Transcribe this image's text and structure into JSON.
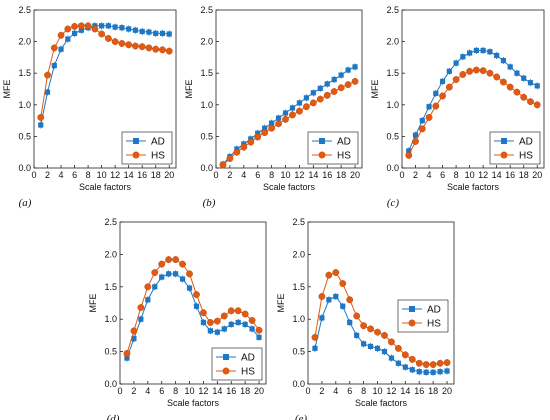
{
  "colors": {
    "AD": "#1f77c4",
    "HS": "#e05a12"
  },
  "chart_data": [
    {
      "type": "line",
      "panel": "(a)",
      "xlabel": "Scale factors",
      "ylabel": "MFE",
      "xlim": [
        0,
        21
      ],
      "ylim": [
        0,
        2.5
      ],
      "xticks": [
        0,
        2,
        4,
        6,
        8,
        10,
        12,
        14,
        16,
        18,
        20
      ],
      "yticks": [
        0,
        0.5,
        1.0,
        1.5,
        2.0,
        2.5
      ],
      "ytick_labels": [
        "0.0",
        "0.5",
        "1.0",
        "1.5",
        "2.0",
        "2.5"
      ],
      "legend": "bottom-right",
      "x": [
        1,
        2,
        3,
        4,
        5,
        6,
        7,
        8,
        9,
        10,
        11,
        12,
        13,
        14,
        15,
        16,
        17,
        18,
        19,
        20
      ],
      "series": [
        {
          "name": "AD",
          "marker": "square",
          "values": [
            0.68,
            1.2,
            1.62,
            1.88,
            2.04,
            2.13,
            2.18,
            2.22,
            2.25,
            2.25,
            2.25,
            2.23,
            2.22,
            2.2,
            2.18,
            2.16,
            2.15,
            2.13,
            2.13,
            2.12
          ]
        },
        {
          "name": "HS",
          "marker": "circle",
          "values": [
            0.8,
            1.47,
            1.9,
            2.1,
            2.2,
            2.24,
            2.25,
            2.25,
            2.2,
            2.12,
            2.05,
            2.0,
            1.97,
            1.95,
            1.93,
            1.92,
            1.9,
            1.88,
            1.87,
            1.85
          ]
        }
      ]
    },
    {
      "type": "line",
      "panel": "(b)",
      "xlabel": "Scale factors",
      "ylabel": "MFE",
      "xlim": [
        0,
        21
      ],
      "ylim": [
        0,
        2.5
      ],
      "xticks": [
        0,
        2,
        4,
        6,
        8,
        10,
        12,
        14,
        16,
        18,
        20
      ],
      "yticks": [
        0,
        0.5,
        1.0,
        1.5,
        2.0,
        2.5
      ],
      "ytick_labels": [
        "0.0",
        "0.5",
        "1.0",
        "1.5",
        "2.0",
        "2.5"
      ],
      "legend": "bottom-right",
      "x": [
        1,
        2,
        3,
        4,
        5,
        6,
        7,
        8,
        9,
        10,
        11,
        12,
        13,
        14,
        15,
        16,
        17,
        18,
        19,
        20
      ],
      "series": [
        {
          "name": "AD",
          "marker": "square",
          "values": [
            0.06,
            0.18,
            0.3,
            0.38,
            0.46,
            0.55,
            0.63,
            0.71,
            0.79,
            0.87,
            0.95,
            1.03,
            1.11,
            1.19,
            1.26,
            1.33,
            1.4,
            1.47,
            1.55,
            1.6
          ]
        },
        {
          "name": "HS",
          "marker": "circle",
          "values": [
            0.05,
            0.15,
            0.25,
            0.33,
            0.41,
            0.49,
            0.56,
            0.63,
            0.7,
            0.77,
            0.84,
            0.9,
            0.97,
            1.03,
            1.09,
            1.15,
            1.21,
            1.27,
            1.32,
            1.37
          ]
        }
      ]
    },
    {
      "type": "line",
      "panel": "(c)",
      "xlabel": "Scale factors",
      "ylabel": "MFE",
      "xlim": [
        0,
        21
      ],
      "ylim": [
        0,
        2.5
      ],
      "xticks": [
        0,
        2,
        4,
        6,
        8,
        10,
        12,
        14,
        16,
        18,
        20
      ],
      "yticks": [
        0,
        0.5,
        1.0,
        1.5,
        2.0,
        2.5
      ],
      "ytick_labels": [
        "0.0",
        "0.5",
        "1.0",
        "1.5",
        "2.0",
        "2.5"
      ],
      "legend": "bottom-right",
      "x": [
        1,
        2,
        3,
        4,
        5,
        6,
        7,
        8,
        9,
        10,
        11,
        12,
        13,
        14,
        15,
        16,
        17,
        18,
        19,
        20
      ],
      "series": [
        {
          "name": "AD",
          "marker": "square",
          "values": [
            0.27,
            0.52,
            0.75,
            0.97,
            1.18,
            1.37,
            1.53,
            1.66,
            1.76,
            1.82,
            1.86,
            1.86,
            1.84,
            1.78,
            1.7,
            1.6,
            1.5,
            1.42,
            1.35,
            1.3
          ]
        },
        {
          "name": "HS",
          "marker": "circle",
          "values": [
            0.2,
            0.42,
            0.62,
            0.8,
            0.98,
            1.14,
            1.28,
            1.4,
            1.48,
            1.53,
            1.55,
            1.54,
            1.5,
            1.44,
            1.36,
            1.28,
            1.2,
            1.12,
            1.05,
            1.0
          ]
        }
      ]
    },
    {
      "type": "line",
      "panel": "(d)",
      "xlabel": "Scale factors",
      "ylabel": "MFE",
      "xlim": [
        0,
        21
      ],
      "ylim": [
        0,
        2.5
      ],
      "xticks": [
        0,
        2,
        4,
        6,
        8,
        10,
        12,
        14,
        16,
        18,
        20
      ],
      "yticks": [
        0,
        0.5,
        1.0,
        1.5,
        2.0,
        2.5
      ],
      "ytick_labels": [
        "0.0",
        "0.5",
        "1.0",
        "1.5",
        "2.0",
        "2.5"
      ],
      "legend": "bottom-right",
      "x": [
        1,
        2,
        3,
        4,
        5,
        6,
        7,
        8,
        9,
        10,
        11,
        12,
        13,
        14,
        15,
        16,
        17,
        18,
        19,
        20
      ],
      "series": [
        {
          "name": "AD",
          "marker": "square",
          "values": [
            0.4,
            0.7,
            1.0,
            1.3,
            1.5,
            1.65,
            1.7,
            1.7,
            1.62,
            1.48,
            1.2,
            0.95,
            0.82,
            0.8,
            0.85,
            0.92,
            0.95,
            0.92,
            0.85,
            0.72
          ]
        },
        {
          "name": "HS",
          "marker": "circle",
          "values": [
            0.47,
            0.82,
            1.18,
            1.5,
            1.72,
            1.85,
            1.92,
            1.92,
            1.85,
            1.7,
            1.38,
            1.1,
            0.95,
            0.97,
            1.05,
            1.13,
            1.13,
            1.08,
            0.98,
            0.83
          ]
        }
      ]
    },
    {
      "type": "line",
      "panel": "(e)",
      "xlabel": "Scale factors",
      "ylabel": "MFE",
      "xlim": [
        0,
        21
      ],
      "ylim": [
        0,
        2.5
      ],
      "xticks": [
        0,
        2,
        4,
        6,
        8,
        10,
        12,
        14,
        16,
        18,
        20
      ],
      "yticks": [
        0,
        0.5,
        1.0,
        1.5,
        2.0,
        2.5
      ],
      "ytick_labels": [
        "0.0",
        "0.5",
        "1.0",
        "1.5",
        "2.0",
        "2.5"
      ],
      "legend": "top-right",
      "x": [
        1,
        2,
        3,
        4,
        5,
        6,
        7,
        8,
        9,
        10,
        11,
        12,
        13,
        14,
        15,
        16,
        17,
        18,
        19,
        20
      ],
      "series": [
        {
          "name": "AD",
          "marker": "square",
          "values": [
            0.55,
            1.02,
            1.3,
            1.35,
            1.2,
            0.95,
            0.75,
            0.62,
            0.58,
            0.55,
            0.5,
            0.4,
            0.32,
            0.26,
            0.22,
            0.19,
            0.18,
            0.18,
            0.19,
            0.2
          ]
        },
        {
          "name": "HS",
          "marker": "circle",
          "values": [
            0.72,
            1.35,
            1.68,
            1.72,
            1.55,
            1.3,
            1.05,
            0.9,
            0.85,
            0.8,
            0.75,
            0.65,
            0.55,
            0.45,
            0.38,
            0.32,
            0.3,
            0.3,
            0.32,
            0.33
          ]
        }
      ]
    }
  ]
}
